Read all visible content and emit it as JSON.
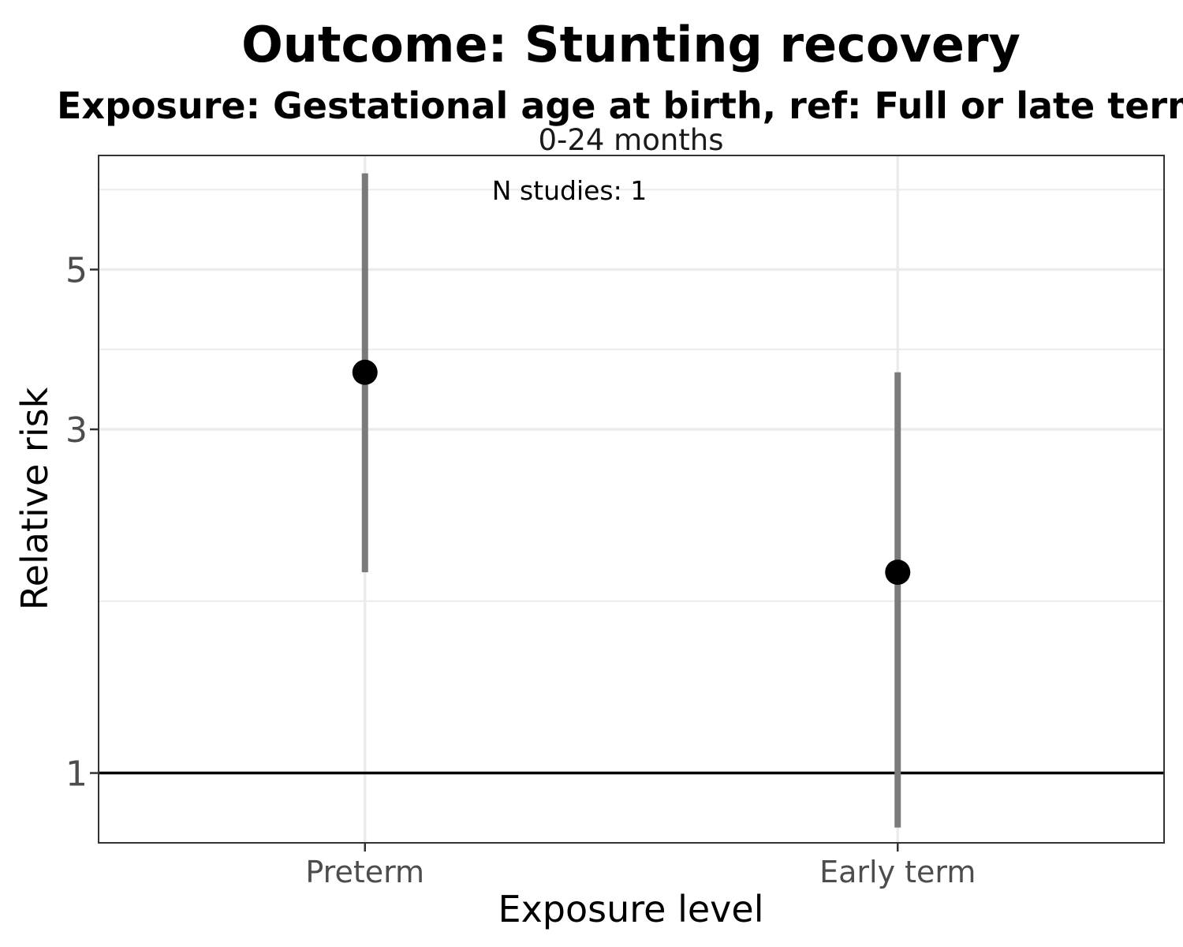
{
  "chart_data": {
    "type": "scatter",
    "title_lines": [
      "Outcome: Stunting recovery",
      "Exposure: Gestational age at birth, ref: Full or late term"
    ],
    "facet_label": "0-24 months",
    "annotation": "N studies: 1",
    "xlabel": "Exposure level",
    "ylabel": "Relative risk",
    "y_scale": "log",
    "ylim": [
      0.8,
      7.2
    ],
    "yticks": [
      1,
      3,
      5
    ],
    "reference_line": 1,
    "categories": [
      "Preterm",
      "Early term"
    ],
    "series": [
      {
        "values": [
          3.6,
          1.9
        ],
        "ci_lower": [
          1.9,
          0.84
        ],
        "ci_upper": [
          6.8,
          3.6
        ]
      }
    ],
    "grid": true,
    "legend": "none",
    "colors": {
      "point": "#000000",
      "interval": "#7a7a7a",
      "grid": "#ebebeb",
      "reference": "#000000",
      "panel_border": "#333333"
    }
  }
}
